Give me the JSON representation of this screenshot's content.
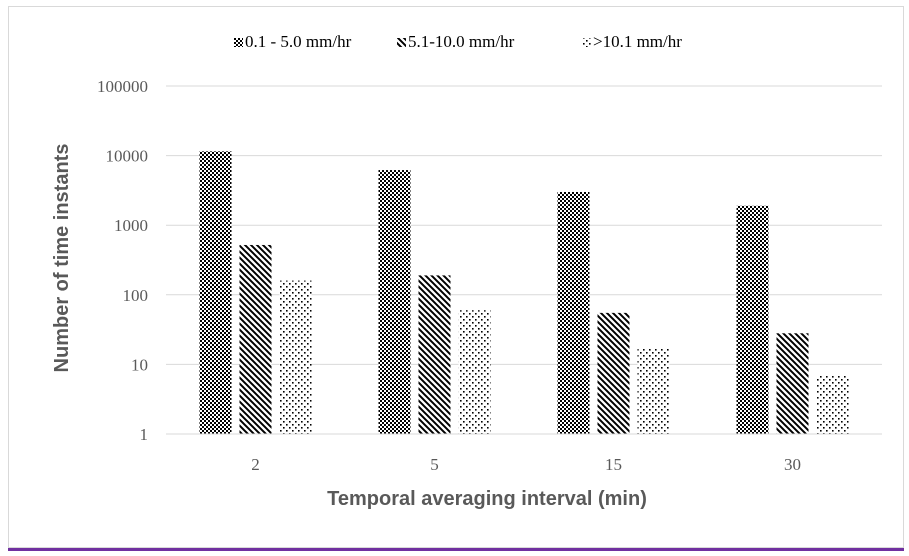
{
  "chart_data": {
    "type": "bar",
    "y_scale": "log",
    "title": "",
    "xlabel": "Temporal averaging interval (min)",
    "ylabel": "Number of time instants",
    "categories": [
      "2",
      "5",
      "15",
      "30"
    ],
    "y_ticks": [
      "1",
      "10",
      "100",
      "1000",
      "10000",
      "100000"
    ],
    "ylim": [
      1,
      100000
    ],
    "grid": true,
    "legend_position": "top",
    "series": [
      {
        "name": "0.1 - 5.0 mm/hr",
        "pattern": "checker",
        "values": [
          11500,
          6200,
          3000,
          1900
        ]
      },
      {
        "name": "5.1-10.0 mm/hr",
        "pattern": "diagonal",
        "values": [
          520,
          190,
          55,
          28
        ]
      },
      {
        "name": ">10.1 mm/hr",
        "pattern": "dots",
        "values": [
          160,
          60,
          17,
          7
        ]
      }
    ],
    "colors": {
      "ink": "#000000",
      "grid": "#d9d9d9",
      "axis_text": "#595959"
    }
  }
}
